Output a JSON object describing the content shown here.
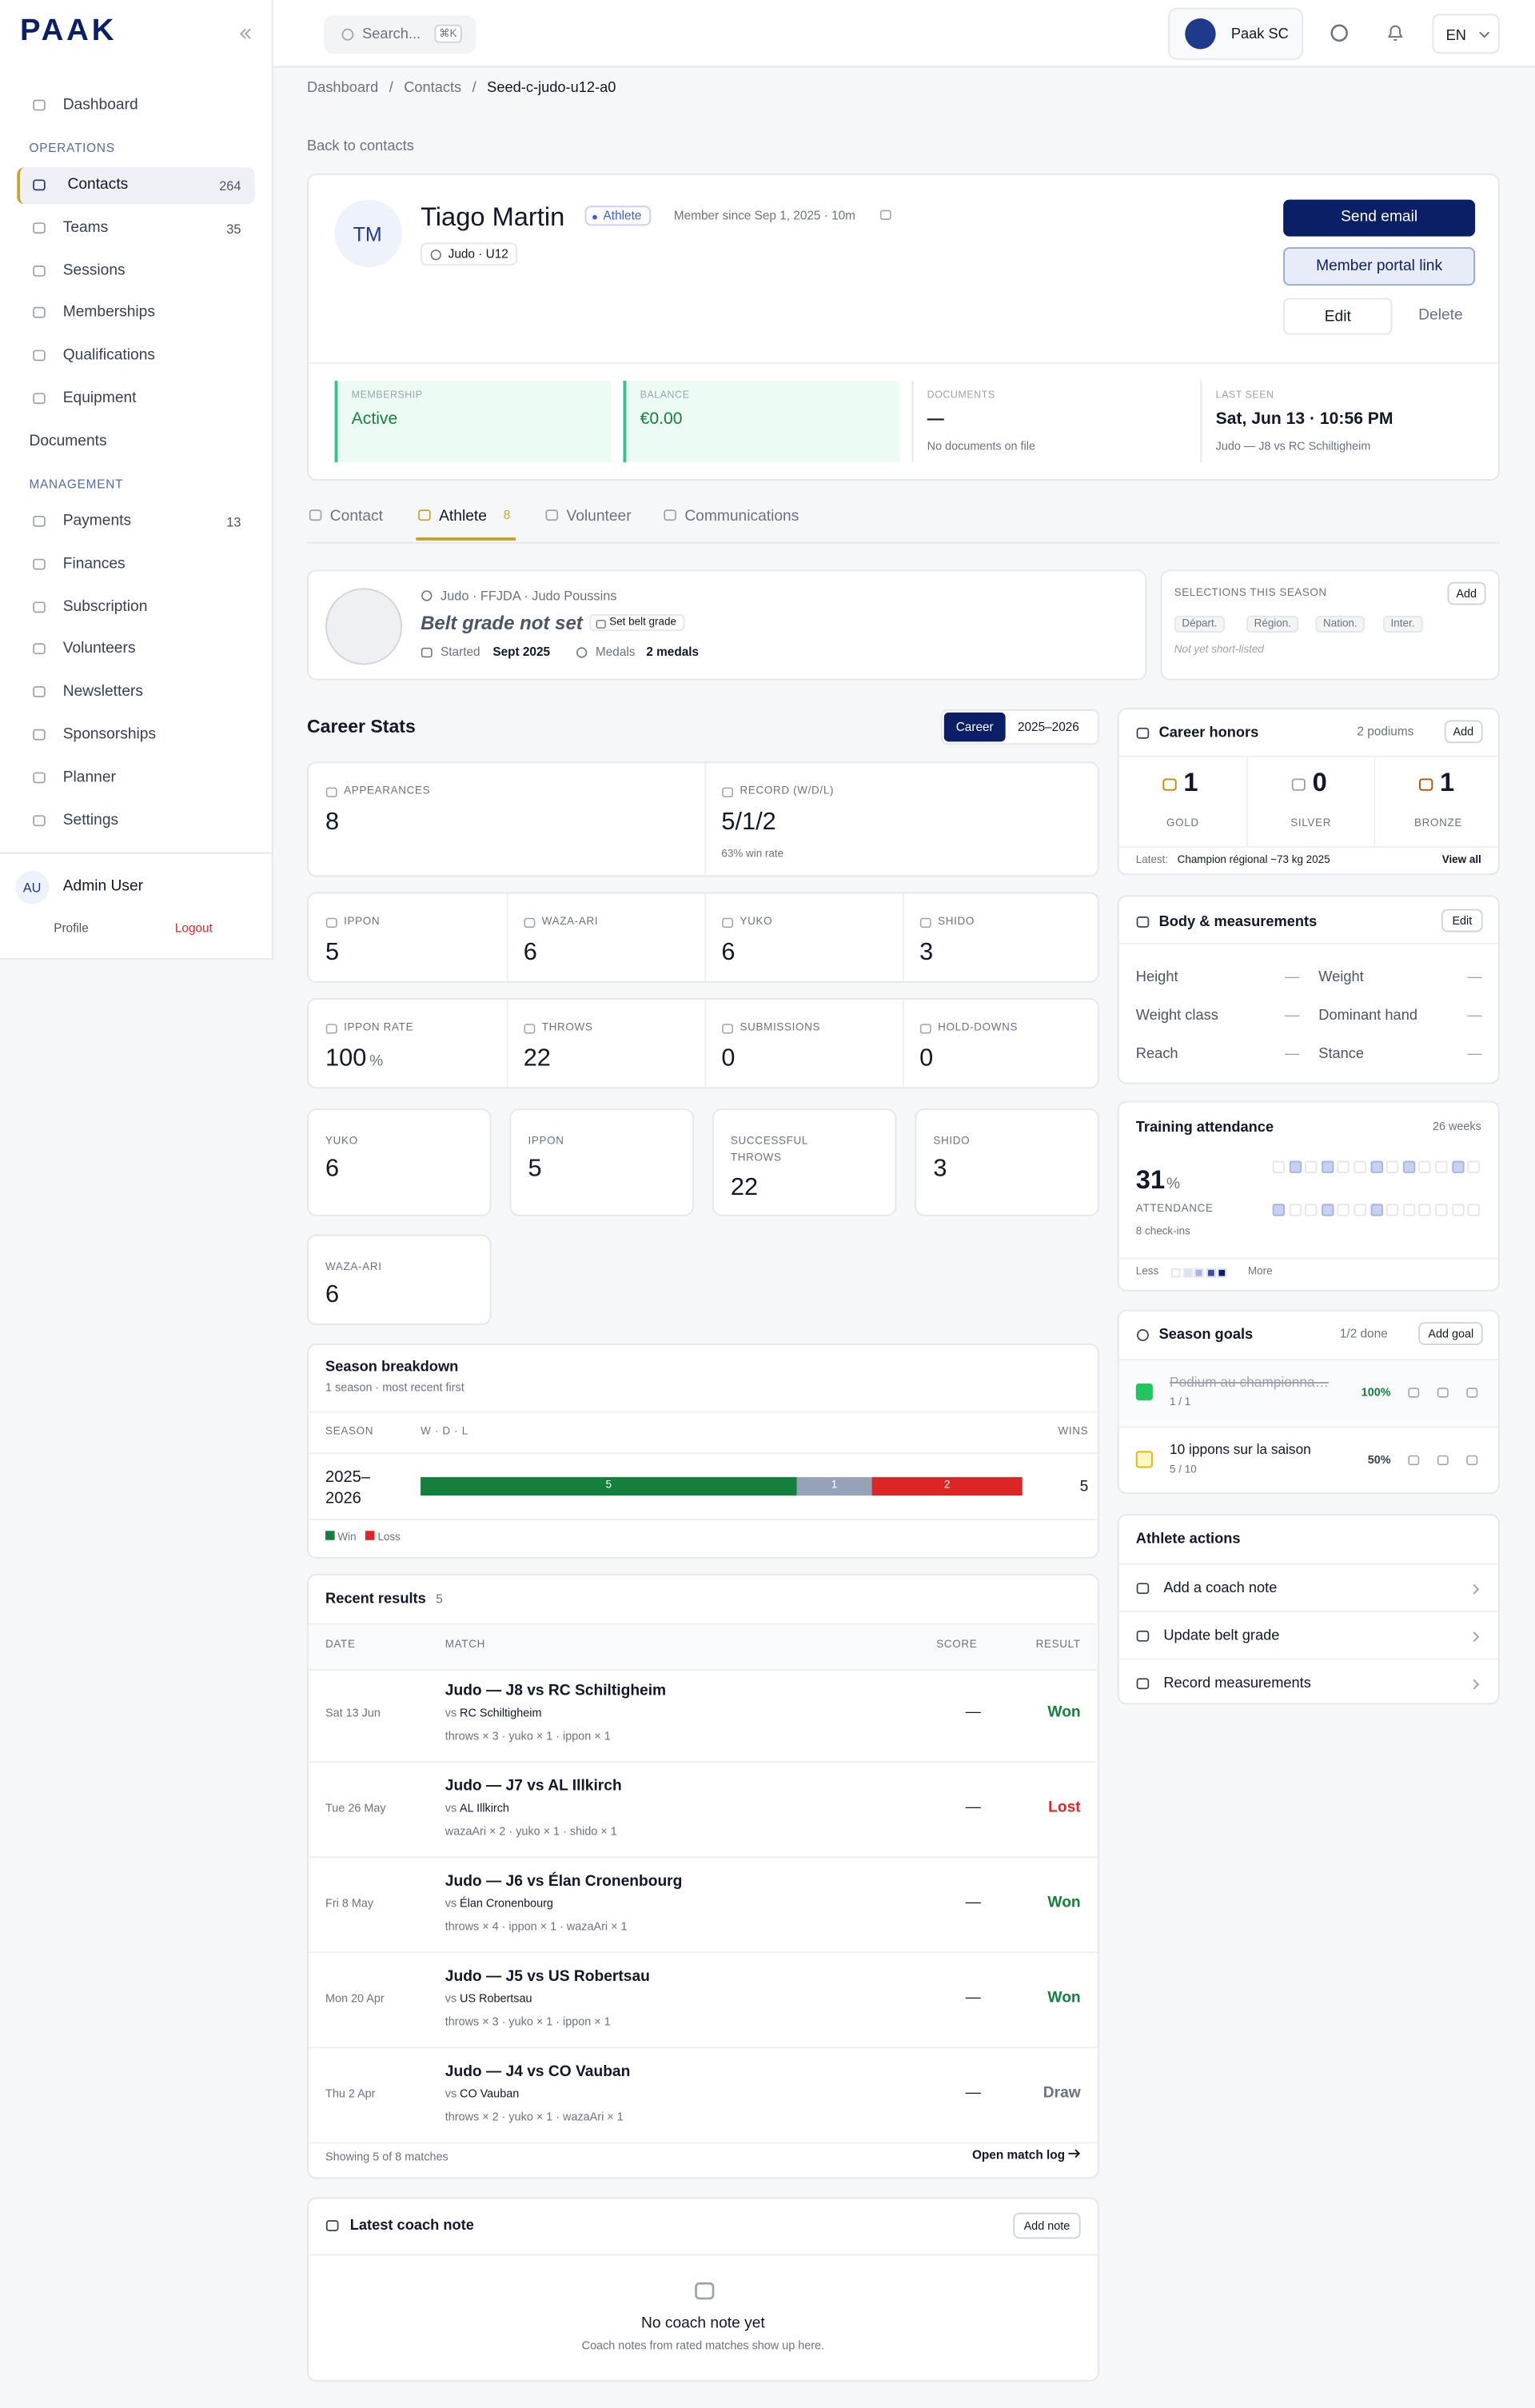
{
  "sidebar": {
    "logo": "PAAK",
    "home": "Dashboard",
    "sections": [
      {
        "title": "OPERATIONS",
        "items": [
          {
            "label": "Contacts",
            "count": "264"
          },
          {
            "label": "Teams",
            "count": "35"
          },
          {
            "label": "Sessions"
          },
          {
            "label": "Memberships"
          },
          {
            "label": "Qualifications"
          },
          {
            "label": "Equipment"
          },
          {
            "label": "Documents"
          }
        ]
      },
      {
        "title": "MANAGEMENT",
        "items": [
          {
            "label": "Payments",
            "count": "13"
          },
          {
            "label": "Finances"
          },
          {
            "label": "Subscription"
          },
          {
            "label": "Volunteers"
          },
          {
            "label": "Newsletters"
          },
          {
            "label": "Sponsorships"
          },
          {
            "label": "Planner"
          },
          {
            "label": "Settings"
          }
        ]
      }
    ],
    "user": {
      "initials": "AU",
      "name": "Admin User",
      "profile": "Profile",
      "logout": "Logout"
    }
  },
  "topbar": {
    "search": "Search...",
    "shortcut": "⌘K",
    "org": "Paak SC",
    "language": "EN"
  },
  "breadcrumb": {
    "items": [
      "Dashboard",
      "Contacts",
      "Seed-c-judo-u12-a0"
    ],
    "separator": "/"
  },
  "back": "Back to contacts",
  "profile": {
    "initials": "TM",
    "name": "Tiago Martin",
    "role": "Athlete",
    "since": "Member since Sep 1, 2025 · 10m",
    "group": "Judo · U12",
    "actions": [
      "Send email",
      "Member portal link",
      "Edit",
      "Delete"
    ],
    "stats": [
      {
        "label": "MEMBERSHIP",
        "value": "Active"
      },
      {
        "label": "BALANCE",
        "value": "€0.00"
      },
      {
        "label": "DOCUMENTS",
        "value": "—",
        "sub": "No documents on file"
      },
      {
        "label": "LAST SEEN",
        "value": "Sat, Jun 13 · 10:56 PM",
        "sub": "Judo — J8 vs RC Schiltigheim"
      }
    ]
  },
  "tabs": [
    {
      "label": "Contact"
    },
    {
      "label": "Athlete",
      "count": "8"
    },
    {
      "label": "Volunteer"
    },
    {
      "label": "Communications"
    }
  ],
  "athlete": {
    "org": "Judo · FFJDA · Judo Poussins",
    "belt": "Belt grade not set",
    "set_belt": "Set belt grade",
    "started_label": "Started",
    "started": "Sept 2025",
    "medals_label": "Medals",
    "medals": "2 medals"
  },
  "selections": {
    "title": "SELECTIONS THIS SEASON",
    "add": "Add",
    "levels": [
      "Départ.",
      "Région.",
      "Nation.",
      "Inter."
    ],
    "note": "Not yet short-listed"
  },
  "career_stats": {
    "title": "Career Stats",
    "toggle": [
      "Career",
      "2025–2026"
    ],
    "rows": [
      [
        {
          "label": "APPEARANCES",
          "value": "8"
        },
        {
          "label": "RECORD (W/D/L)",
          "value": "5/1/2",
          "sub": "63% win rate"
        }
      ],
      [
        {
          "label": "IPPON",
          "value": "5"
        },
        {
          "label": "WAZA-ARI",
          "value": "6"
        },
        {
          "label": "YUKO",
          "value": "6"
        },
        {
          "label": "SHIDO",
          "value": "3"
        }
      ],
      [
        {
          "label": "IPPON RATE",
          "value": "100",
          "unit": "%"
        },
        {
          "label": "THROWS",
          "value": "22"
        },
        {
          "label": "SUBMISSIONS",
          "value": "0"
        },
        {
          "label": "HOLD-DOWNS",
          "value": "0"
        }
      ]
    ],
    "cards": [
      {
        "label": "YUKO",
        "value": "6"
      },
      {
        "label": "IPPON",
        "value": "5"
      },
      {
        "label": "SUCCESSFUL THROWS",
        "value": "22"
      },
      {
        "label": "SHIDO",
        "value": "3"
      },
      {
        "label": "WAZA-ARI",
        "value": "6"
      }
    ]
  },
  "season_breakdown": {
    "title": "Season breakdown",
    "subtitle": "1 season · most recent first",
    "headers": [
      "SEASON",
      "W · D · L",
      "WINS"
    ],
    "rows": [
      {
        "season": "2025–2026",
        "wins": 5,
        "draws": 1,
        "losses": 2,
        "wins_label": "5"
      }
    ],
    "colors": [
      "#15803d",
      "#94a3b8",
      "#dc2626"
    ],
    "legend": [
      "Win",
      "Loss"
    ]
  },
  "recent_results": {
    "title": "Recent results",
    "count": "5",
    "headers": [
      "DATE",
      "MATCH",
      "SCORE",
      "RESULT"
    ],
    "vs": "vs",
    "rows": [
      {
        "date": "Sat 13 Jun",
        "match": "Judo — J8 vs RC Schiltigheim",
        "opponent": "RC Schiltigheim",
        "detail": "throws × 3 · yuko × 1 · ippon × 1",
        "score": "—",
        "result": "Won",
        "color": "#15803d"
      },
      {
        "date": "Tue 26 May",
        "match": "Judo — J7 vs AL Illkirch",
        "opponent": "AL Illkirch",
        "detail": "wazaAri × 2 · yuko × 1 · shido × 1",
        "score": "—",
        "result": "Lost",
        "color": "#dc2626"
      },
      {
        "date": "Fri 8 May",
        "match": "Judo — J6 vs Élan Cronenbourg",
        "opponent": "Élan Cronenbourg",
        "detail": "throws × 4 · ippon × 1 · wazaAri × 1",
        "score": "—",
        "result": "Won",
        "color": "#15803d"
      },
      {
        "date": "Mon 20 Apr",
        "match": "Judo — J5 vs US Robertsau",
        "opponent": "US Robertsau",
        "detail": "throws × 3 · yuko × 1 · ippon × 1",
        "score": "—",
        "result": "Won",
        "color": "#15803d"
      },
      {
        "date": "Thu 2 Apr",
        "match": "Judo — J4 vs CO Vauban",
        "opponent": "CO Vauban",
        "detail": "throws × 2 · yuko × 1 · wazaAri × 1",
        "score": "—",
        "result": "Draw",
        "color": "#6b7280"
      }
    ],
    "footer": "Showing 5 of 8 matches",
    "link": "Open match log"
  },
  "coach_note": {
    "title": "Latest coach note",
    "add": "Add note",
    "empty_title": "No coach note yet",
    "empty_sub": "Coach notes from rated matches show up here."
  },
  "honors": {
    "title": "Career honors",
    "count": "2 podiums",
    "add": "Add",
    "medals": [
      {
        "value": "1",
        "label": "GOLD",
        "color": "#ca8a04"
      },
      {
        "value": "0",
        "label": "SILVER",
        "color": "#9ca3af"
      },
      {
        "value": "1",
        "label": "BRONZE",
        "color": "#b45309"
      }
    ],
    "latest_label": "Latest:",
    "latest": "Champion régional −73 kg 2025",
    "view": "View all"
  },
  "body": {
    "title": "Body & measurements",
    "edit": "Edit",
    "fields": [
      {
        "label": "Height",
        "value": "—"
      },
      {
        "label": "Weight",
        "value": "—"
      },
      {
        "label": "Weight class",
        "value": "—"
      },
      {
        "label": "Dominant hand",
        "value": "—"
      },
      {
        "label": "Reach",
        "value": "—"
      },
      {
        "label": "Stance",
        "value": "—"
      }
    ]
  },
  "attendance": {
    "title": "Training attendance",
    "weeks": "26 weeks",
    "value": "31",
    "unit": "%",
    "label": "ATTENDANCE",
    "checkins": "8 check-ins",
    "less": "Less",
    "more": "More"
  },
  "goals": {
    "title": "Season goals",
    "done": "1/2 done",
    "add": "Add goal",
    "items": [
      {
        "title": "Podium au championna…",
        "progress": "1 / 1",
        "percent": "100%",
        "done": true
      },
      {
        "title": "10 ippons sur la saison",
        "progress": "5 / 10",
        "percent": "50%",
        "done": false
      }
    ]
  },
  "athlete_actions": {
    "title": "Athlete actions",
    "items": [
      "Add a coach note",
      "Update belt grade",
      "Record measurements"
    ]
  }
}
